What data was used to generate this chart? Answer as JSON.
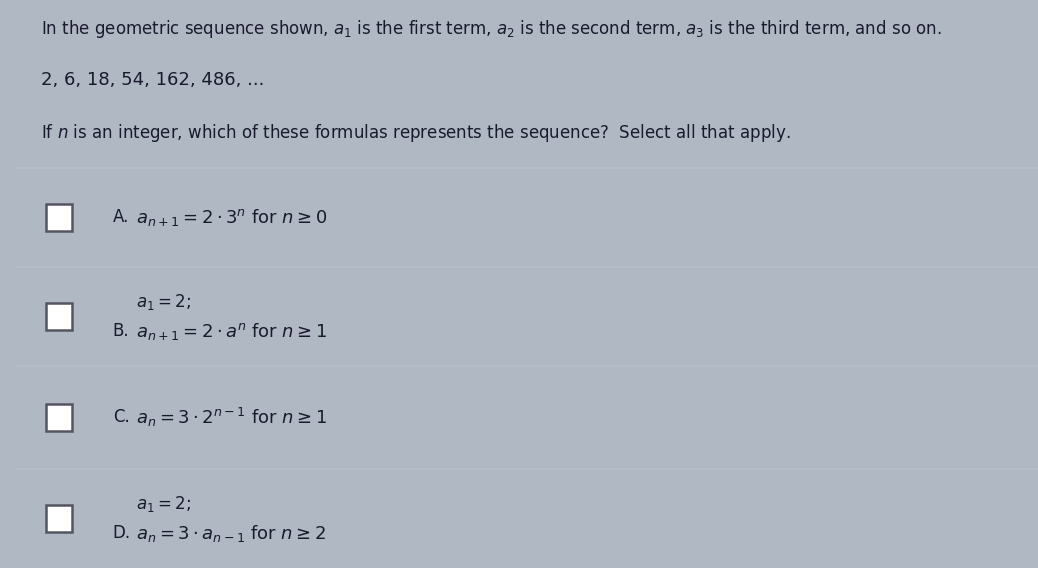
{
  "background_color": "#b0b8c4",
  "sidebar_color": "#2a2a3a",
  "panel_color": "#d8dde5",
  "divider_color": "#b8bfc8",
  "text_color": "#1a1a2e",
  "checkbox_edge_color": "#555560",
  "header_text": "In the geometric sequence shown, $a_1$ is the first term, $a_2$ is the second term, $a_3$ is the third term, and so on.",
  "sequence_text": "2, 6, 18, 54, 162, 486, ...",
  "question_text": "If $n$ is an integer, which of these formulas represents the sequence?  Select all that apply.",
  "options": [
    {
      "label": "A.",
      "line1": "$a_{n+1} = 2 \\cdot 3^n$ for $n \\geq 0$",
      "line2": null
    },
    {
      "label": "B.",
      "line1": "$a_1 = 2;$",
      "line2": "$a_{n+1} = 2 \\cdot a^n$ for $n \\geq 1$"
    },
    {
      "label": "C.",
      "line1": "$a_n = 3 \\cdot 2^{n-1}$ for $n \\geq 1$",
      "line2": null
    },
    {
      "label": "D.",
      "line1": "$a_1 = 2;$",
      "line2": "$a_n = 3 \\cdot a_{n-1}$ for $n \\geq 2$"
    }
  ],
  "font_size_header": 12,
  "font_size_sequence": 13,
  "font_size_question": 12,
  "font_size_option": 13,
  "font_size_label": 12
}
